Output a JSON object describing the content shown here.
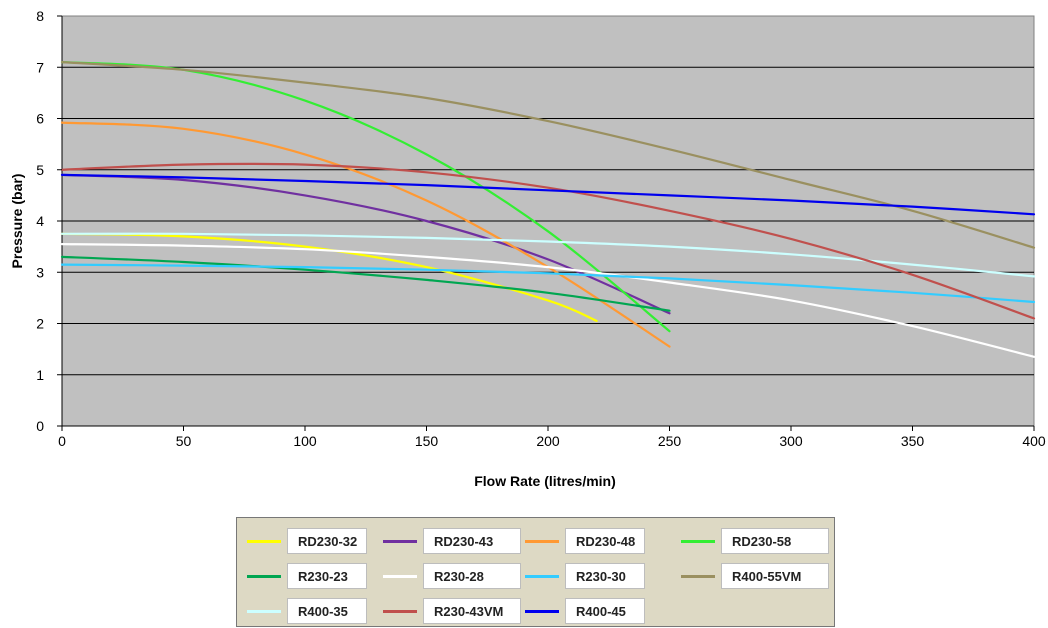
{
  "chart_data": {
    "type": "line",
    "title": "",
    "xlabel": "Flow Rate (litres/min)",
    "ylabel": "Pressure (bar)",
    "xlim": [
      0,
      400
    ],
    "ylim": [
      0,
      8
    ],
    "x_ticks": [
      "0",
      "50",
      "100",
      "150",
      "200",
      "250",
      "300",
      "350",
      "400"
    ],
    "y_ticks": [
      "0",
      "1",
      "2",
      "3",
      "4",
      "5",
      "6",
      "7",
      "8"
    ],
    "grid": "horizontal",
    "plot_background": "#c0c0c0",
    "legend_position": "bottom",
    "series": [
      {
        "name": "RD230-32",
        "color": "#ffff00",
        "x": [
          0,
          50,
          100,
          150,
          200,
          220
        ],
        "y": [
          3.75,
          3.7,
          3.5,
          3.1,
          2.45,
          2.05
        ]
      },
      {
        "name": "RD230-43",
        "color": "#7030a0",
        "x": [
          0,
          50,
          100,
          150,
          200,
          250
        ],
        "y": [
          4.9,
          4.8,
          4.5,
          4.0,
          3.25,
          2.2
        ]
      },
      {
        "name": "RD230-48",
        "color": "#ff9933",
        "x": [
          0,
          50,
          100,
          150,
          200,
          250
        ],
        "y": [
          5.92,
          5.8,
          5.3,
          4.4,
          3.1,
          1.55
        ]
      },
      {
        "name": "RD230-58",
        "color": "#33ee33",
        "x": [
          0,
          50,
          100,
          150,
          200,
          250
        ],
        "y": [
          7.1,
          6.95,
          6.35,
          5.3,
          3.8,
          1.85
        ]
      },
      {
        "name": "R230-23",
        "color": "#00a651",
        "x": [
          0,
          50,
          100,
          150,
          200,
          250
        ],
        "y": [
          3.3,
          3.2,
          3.05,
          2.85,
          2.6,
          2.25
        ]
      },
      {
        "name": "R230-28",
        "color": "#ffffff",
        "x": [
          0,
          50,
          100,
          150,
          200,
          250,
          300,
          350,
          400
        ],
        "y": [
          3.55,
          3.52,
          3.45,
          3.3,
          3.1,
          2.8,
          2.45,
          1.95,
          1.35
        ]
      },
      {
        "name": "R230-30",
        "color": "#33ccff",
        "x": [
          0,
          50,
          100,
          150,
          200,
          250,
          300,
          350,
          400
        ],
        "y": [
          3.15,
          3.13,
          3.1,
          3.05,
          2.98,
          2.88,
          2.75,
          2.6,
          2.42
        ]
      },
      {
        "name": "R400-55VM",
        "color": "#9a9060",
        "x": [
          0,
          50,
          100,
          150,
          200,
          250,
          300,
          350,
          400
        ],
        "y": [
          7.1,
          6.95,
          6.7,
          6.4,
          5.95,
          5.4,
          4.8,
          4.2,
          3.48
        ]
      },
      {
        "name": "R400-35",
        "color": "#ccffff",
        "x": [
          0,
          50,
          100,
          150,
          200,
          250,
          300,
          350,
          400
        ],
        "y": [
          3.75,
          3.75,
          3.72,
          3.67,
          3.6,
          3.5,
          3.35,
          3.15,
          2.92
        ]
      },
      {
        "name": "R230-43VM",
        "color": "#c0504d",
        "x": [
          0,
          50,
          100,
          150,
          200,
          250,
          300,
          350,
          400
        ],
        "y": [
          5.0,
          5.1,
          5.1,
          4.95,
          4.65,
          4.2,
          3.65,
          2.95,
          2.1
        ]
      },
      {
        "name": "R400-45",
        "color": "#0000ee",
        "x": [
          0,
          50,
          100,
          150,
          200,
          250,
          300,
          350,
          400
        ],
        "y": [
          4.9,
          4.85,
          4.78,
          4.7,
          4.6,
          4.5,
          4.4,
          4.28,
          4.13
        ]
      }
    ]
  }
}
